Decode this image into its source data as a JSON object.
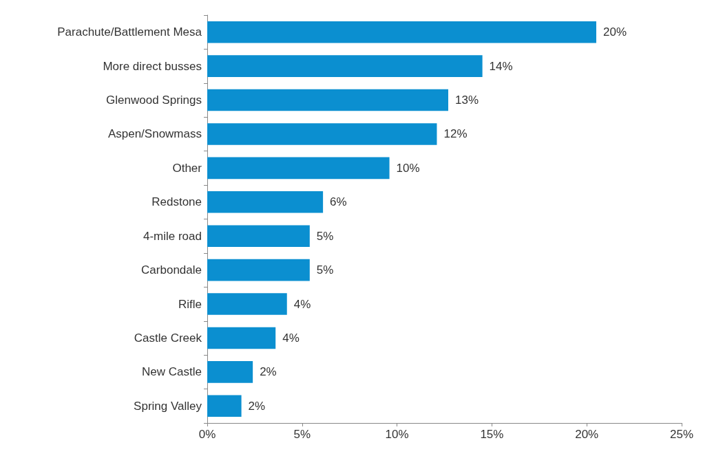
{
  "chart_data": {
    "type": "bar",
    "orientation": "horizontal",
    "categories": [
      "Parachute/Battlement Mesa",
      "More direct busses",
      "Glenwood Springs",
      "Aspen/Snowmass",
      "Other",
      "Redstone",
      "4-mile road",
      "Carbondale",
      "Rifle",
      "Castle Creek",
      "New Castle",
      "Spring Valley"
    ],
    "values": [
      20.5,
      14.5,
      12.7,
      12.1,
      9.6,
      6.1,
      5.4,
      5.4,
      4.2,
      3.6,
      2.4,
      1.8
    ],
    "value_labels": [
      "20%",
      "14%",
      "13%",
      "12%",
      "10%",
      "6%",
      "5%",
      "5%",
      "4%",
      "4%",
      "2%",
      "2%"
    ],
    "color": "#0b8fd0",
    "xlim": [
      0,
      25
    ],
    "xticks": [
      {
        "value": 0,
        "label": "0%"
      },
      {
        "value": 5,
        "label": "5%"
      },
      {
        "value": 10,
        "label": "10%"
      },
      {
        "value": 15,
        "label": "15%"
      },
      {
        "value": 20,
        "label": "20%"
      },
      {
        "value": 25,
        "label": "25%"
      }
    ],
    "grid": false
  }
}
